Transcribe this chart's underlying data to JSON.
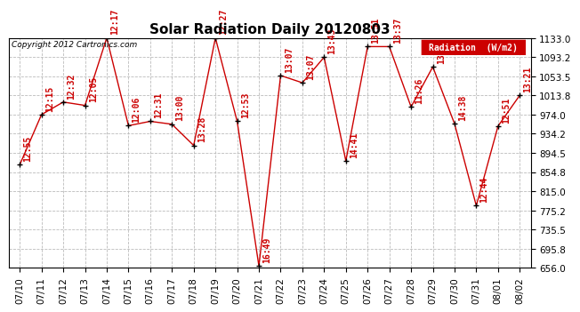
{
  "title": "Solar Radiation Daily 20120803",
  "copyright_text": "Copyright 2012 Cartronics.com",
  "legend_label": "Radiation  (W/m2)",
  "x_labels": [
    "07/10",
    "07/11",
    "07/12",
    "07/13",
    "07/14",
    "07/15",
    "07/16",
    "07/17",
    "07/18",
    "07/19",
    "07/20",
    "07/21",
    "07/22",
    "07/23",
    "07/24",
    "07/25",
    "07/26",
    "07/27",
    "07/28",
    "07/29",
    "07/30",
    "07/31",
    "08/01",
    "08/02"
  ],
  "y_values": [
    870,
    974,
    1000,
    993,
    1133,
    951,
    960,
    954,
    910,
    1133,
    960,
    660,
    1055,
    1040,
    1093,
    878,
    1115,
    1115,
    990,
    1073,
    955,
    785,
    950,
    1014
  ],
  "time_labels": [
    "12:55",
    "12:15",
    "12:32",
    "12:05",
    "12:17",
    "12:06",
    "12:31",
    "13:00",
    "13:28",
    "12:27",
    "12:53",
    "16:49",
    "13:07",
    "13:07",
    "13:43",
    "14:41",
    "13:51",
    "13:37",
    "11:26",
    "13:21",
    "14:38",
    "12:44",
    "12:51",
    "13:21"
  ],
  "ylim_min": 656.0,
  "ylim_max": 1133.0,
  "yticks": [
    656.0,
    695.8,
    735.5,
    775.2,
    815.0,
    854.8,
    894.5,
    934.2,
    974.0,
    1013.8,
    1053.5,
    1093.2,
    1133.0
  ],
  "line_color": "#cc0000",
  "bg_color": "#ffffff",
  "grid_color": "#bbbbbb",
  "title_fontsize": 11,
  "tick_fontsize": 7.5,
  "annotation_fontsize": 7,
  "annotation_color": "#cc0000",
  "legend_bg": "#cc0000",
  "legend_text_color": "#ffffff"
}
